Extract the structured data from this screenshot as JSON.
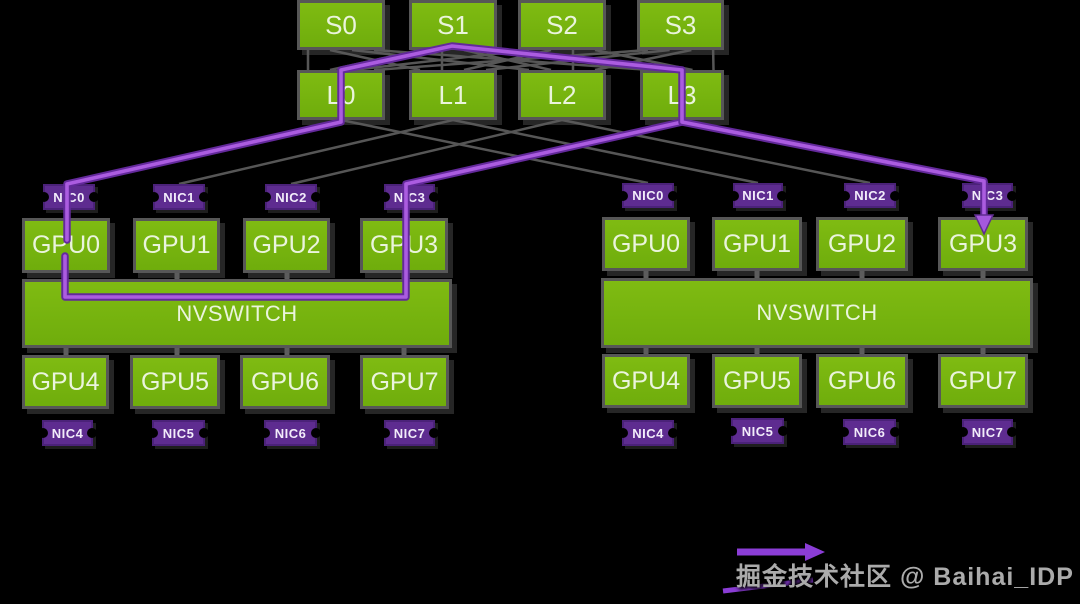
{
  "spine_switches": [
    "S0",
    "S1",
    "S2",
    "S3"
  ],
  "leaf_switches": [
    "L0",
    "L1",
    "L2",
    "L3"
  ],
  "node_left": {
    "nics_top": [
      "NIC0",
      "NIC1",
      "NIC2",
      "NIC3"
    ],
    "gpus_top": [
      "GPU0",
      "GPU1",
      "GPU2",
      "GPU3"
    ],
    "nvswitch": "NVSWITCH",
    "gpus_bottom": [
      "GPU4",
      "GPU5",
      "GPU6",
      "GPU7"
    ],
    "nics_bottom": [
      "NIC4",
      "NIC5",
      "NIC6",
      "NIC7"
    ]
  },
  "node_right": {
    "nics_top": [
      "NIC0",
      "NIC1",
      "NIC2",
      "NIC3"
    ],
    "gpus_top": [
      "GPU0",
      "GPU1",
      "GPU2",
      "GPU3"
    ],
    "nvswitch": "NVSWITCH",
    "gpus_bottom": [
      "GPU4",
      "GPU5",
      "GPU6",
      "GPU7"
    ],
    "nics_bottom": [
      "NIC4",
      "NIC5",
      "NIC6",
      "NIC7"
    ]
  },
  "watermark": {
    "text": "掘金技术社区 @ Baihai_IDP"
  },
  "colors": {
    "background": "#000000",
    "box_green": "#76b900",
    "box_border_gray": "#575757",
    "nic_purple": "#5e2c90",
    "route_purple_core": "#ab5ce0",
    "route_purple_edge": "#63299b",
    "mesh_gray": "#565656",
    "watermark_gray": "#ababab"
  }
}
